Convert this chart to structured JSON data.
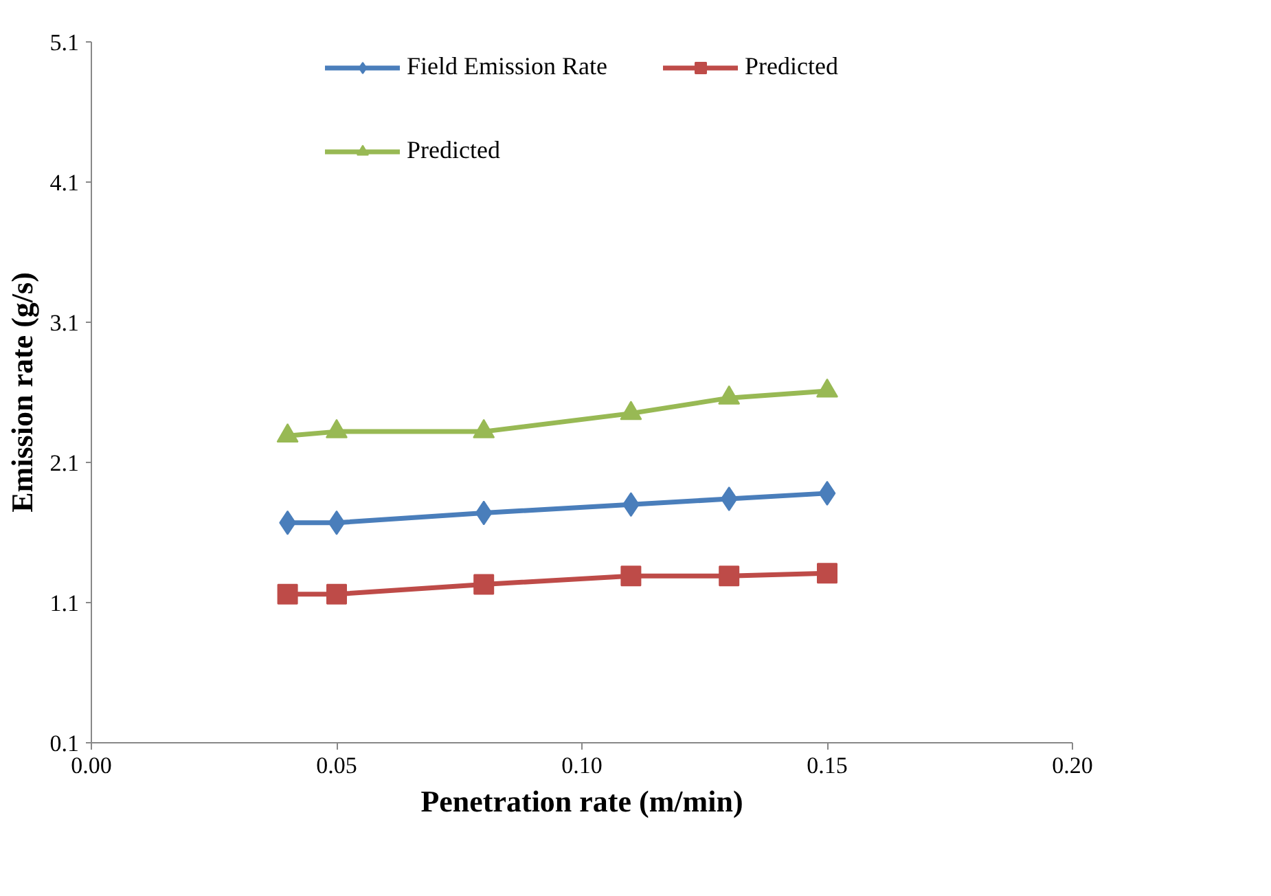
{
  "chart_data": {
    "type": "line",
    "xlabel": "Penetration rate (m/min)",
    "ylabel": "Emission rate (g/s)",
    "x": [
      0.04,
      0.05,
      0.08,
      0.11,
      0.13,
      0.15
    ],
    "series": [
      {
        "name": "Field Emission Rate",
        "color": "#4a7ebb",
        "marker": "diamond",
        "values": [
          1.67,
          1.67,
          1.74,
          1.8,
          1.84,
          1.88
        ]
      },
      {
        "name": "Predicted",
        "color": "#be4b48",
        "marker": "square",
        "values": [
          1.16,
          1.16,
          1.23,
          1.29,
          1.29,
          1.31
        ]
      },
      {
        "name": "Predicted",
        "color": "#98b954",
        "marker": "triangle",
        "values": [
          2.29,
          2.32,
          2.32,
          2.45,
          2.56,
          2.61
        ]
      }
    ],
    "xlim": [
      0,
      0.2
    ],
    "xticks": [
      {
        "value": 0,
        "label": "0.00"
      },
      {
        "value": 0.05,
        "label": "0.05"
      },
      {
        "value": 0.1,
        "label": "0.10"
      },
      {
        "value": 0.15,
        "label": "0.15"
      },
      {
        "value": 0.2,
        "label": "0.20"
      }
    ],
    "ylim": [
      0.1,
      5.1
    ],
    "yticks": [
      0.1,
      1.1,
      2.1,
      3.1,
      4.1,
      5.1
    ],
    "grid": false,
    "legend": "top",
    "line_style": "solid"
  }
}
